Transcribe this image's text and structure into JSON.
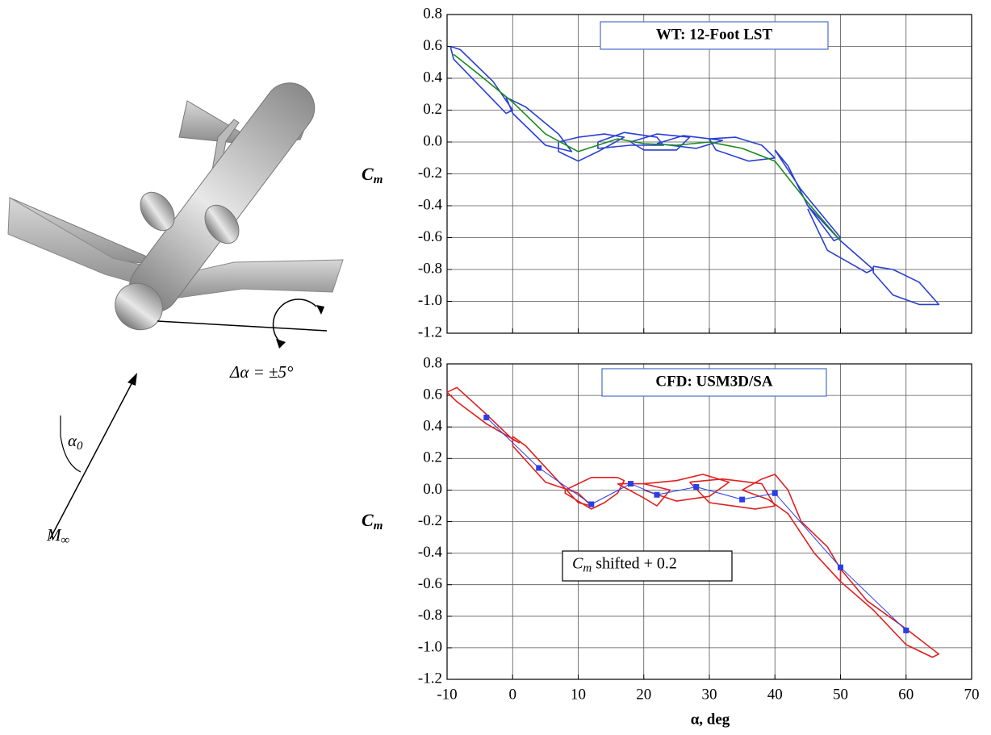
{
  "chart_data": [
    {
      "type": "line",
      "title": "WT: 12-Foot LST",
      "ylabel": [
        "C",
        "m"
      ],
      "xlim": [
        -10,
        70
      ],
      "xticks": [
        -10,
        0,
        10,
        20,
        30,
        40,
        50,
        60,
        70
      ],
      "show_xtick_labels": false,
      "ylim": [
        -1.2,
        0.8
      ],
      "yticks": [
        {
          "value": -1.2,
          "label": "-1.2"
        },
        {
          "value": -1,
          "label": "-1.0"
        },
        -0.8,
        -0.6,
        -0.4,
        -0.2,
        {
          "value": 0,
          "label": "0.0"
        },
        0.2,
        0.4,
        0.6,
        0.8
      ],
      "grid": true,
      "series": [
        {
          "color": "#2a3fd6",
          "x": [
            -9.5,
            -8,
            -3,
            0,
            -1,
            -5,
            -9,
            -9.5,
            null,
            -1,
            2,
            7,
            9,
            5,
            0,
            -1,
            null,
            7,
            10,
            14,
            17,
            13,
            10,
            7,
            7,
            null,
            13,
            17,
            22,
            23,
            18,
            13,
            13,
            null,
            18,
            22,
            27,
            25,
            20,
            18,
            null,
            22,
            26,
            32,
            28,
            22,
            null,
            30,
            34,
            38,
            40,
            36,
            31,
            30,
            null,
            40,
            44,
            50,
            49,
            45,
            42,
            40,
            null,
            45,
            50,
            55,
            54,
            48,
            45,
            null,
            55,
            58,
            62,
            65,
            62,
            58,
            55,
            55
          ],
          "values": [
            0.6,
            0.58,
            0.38,
            0.2,
            0.18,
            0.35,
            0.52,
            0.6,
            null,
            0.28,
            0.22,
            0.05,
            -0.06,
            -0.02,
            0.18,
            0.28,
            null,
            0,
            0.03,
            0.05,
            0.03,
            -0.06,
            -0.12,
            -0.06,
            0,
            null,
            0,
            0.06,
            0.03,
            -0.02,
            -0.02,
            -0.04,
            0,
            null,
            0,
            0.05,
            0.03,
            -0.05,
            -0.05,
            0,
            null,
            -0.01,
            0.04,
            0.01,
            -0.04,
            -0.01,
            null,
            0.02,
            0.03,
            -0.02,
            -0.1,
            -0.12,
            -0.05,
            0.02,
            null,
            -0.05,
            -0.3,
            -0.6,
            -0.62,
            -0.4,
            -0.15,
            -0.05,
            null,
            -0.4,
            -0.62,
            -0.8,
            -0.82,
            -0.68,
            -0.42,
            null,
            -0.78,
            -0.8,
            -0.88,
            -1.02,
            -1.02,
            -0.96,
            -0.82,
            -0.78
          ]
        },
        {
          "color": "#1a8a1a",
          "x": [
            -9,
            -5,
            0,
            5,
            10,
            16,
            20,
            25,
            30,
            35,
            40,
            45,
            50
          ],
          "values": [
            0.55,
            0.42,
            0.25,
            0.05,
            -0.06,
            0.02,
            -0.01,
            -0.02,
            0,
            -0.04,
            -0.12,
            -0.38,
            -0.62
          ]
        }
      ]
    },
    {
      "type": "line",
      "title": "CFD: USM3D/SA",
      "ylabel": [
        "C",
        "m"
      ],
      "xlabel": "α, deg",
      "annotation": [
        "C",
        "m",
        " shifted + 0.2"
      ],
      "xlim": [
        -10,
        70
      ],
      "xticks": [
        -10,
        0,
        10,
        20,
        30,
        40,
        50,
        60,
        70
      ],
      "show_xtick_labels": true,
      "ylim": [
        -1.2,
        0.8
      ],
      "yticks": [
        {
          "value": -1.2,
          "label": "-1.2"
        },
        {
          "value": -1,
          "label": "-1.0"
        },
        -0.8,
        -0.6,
        -0.4,
        -0.2,
        {
          "value": 0,
          "label": "0.0"
        },
        0.2,
        0.4,
        0.6,
        0.8
      ],
      "grid": true,
      "series": [
        {
          "color": "#e02020",
          "x": [
            -10,
            -8.5,
            -4,
            0,
            1,
            -4,
            -8.5,
            -10,
            null,
            0,
            2,
            6,
            10,
            12,
            10,
            5,
            0,
            0,
            null,
            8,
            12,
            16,
            17,
            16,
            14,
            12,
            8,
            8,
            null,
            16,
            20,
            24,
            22,
            20,
            16,
            null,
            20,
            25,
            29,
            33,
            30,
            25,
            20,
            null,
            27,
            32,
            38,
            40,
            37,
            30,
            27,
            null,
            35,
            38,
            40,
            42,
            44,
            48,
            50,
            50,
            46,
            42,
            39,
            35,
            null,
            50,
            54,
            60,
            65,
            64,
            60,
            55,
            50
          ],
          "values": [
            0.62,
            0.65,
            0.48,
            0.32,
            0.3,
            0.42,
            0.56,
            0.62,
            null,
            0.34,
            0.28,
            0.1,
            -0.08,
            -0.1,
            -0.02,
            0.05,
            0.28,
            0.34,
            null,
            0,
            0.08,
            0.08,
            0.06,
            -0.02,
            -0.08,
            -0.12,
            -0.02,
            0,
            null,
            0.04,
            0.04,
            0,
            -0.1,
            -0.05,
            0.04,
            null,
            0.04,
            0.06,
            0.1,
            0.05,
            -0.04,
            -0.07,
            0,
            null,
            0.05,
            0.07,
            0.04,
            -0.1,
            -0.12,
            -0.08,
            0.05,
            null,
            0,
            0.07,
            0.1,
            0,
            -0.2,
            -0.36,
            -0.5,
            -0.58,
            -0.4,
            -0.15,
            -0.06,
            0,
            null,
            -0.5,
            -0.7,
            -0.88,
            -1.04,
            -1.06,
            -0.98,
            -0.76,
            -0.58
          ]
        },
        {
          "color": "#2a3fe6",
          "marker": "square",
          "x": [
            -4,
            4,
            12,
            18,
            22,
            28,
            35,
            40,
            50,
            60
          ],
          "values": [
            0.46,
            0.14,
            -0.09,
            0.04,
            -0.03,
            0.02,
            -0.06,
            -0.02,
            -0.49,
            -0.89
          ]
        }
      ]
    }
  ],
  "illustration": {
    "alpha_label": [
      "α",
      "0"
    ],
    "mach_label": [
      "M",
      "∞"
    ],
    "delta_label": "Δα = ±5°"
  }
}
